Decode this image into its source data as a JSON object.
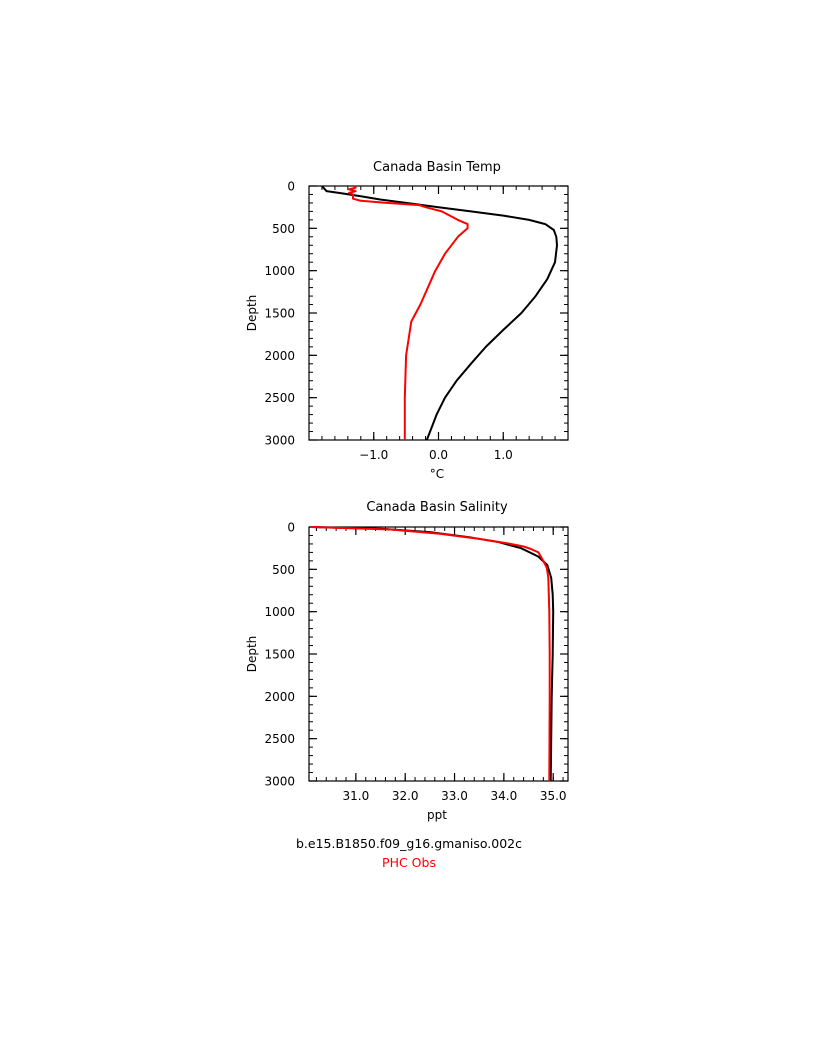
{
  "chart_data": [
    {
      "type": "line",
      "title": "Canada Basin Temp",
      "xlabel": "°C",
      "ylabel": "Depth",
      "xlim": [
        -2.0,
        2.0
      ],
      "ylim": [
        3000,
        0
      ],
      "y_inverted": true,
      "x_ticks": [
        -1.0,
        0.0,
        1.0
      ],
      "x_tick_labels": [
        "−1.0",
        "0.0",
        "1.0"
      ],
      "y_ticks": [
        0,
        500,
        1000,
        1500,
        2000,
        2500,
        3000
      ],
      "y_tick_labels": [
        "0",
        "500",
        "1000",
        "1500",
        "2000",
        "2500",
        "3000"
      ],
      "series": [
        {
          "name": "b.e15.B1850.f09_g16.gmaniso.002c",
          "color": "#000000",
          "points": [
            [
              -1.8,
              0
            ],
            [
              -1.73,
              60
            ],
            [
              -1.5,
              85
            ],
            [
              -1.2,
              120
            ],
            [
              -0.9,
              160
            ],
            [
              -0.5,
              200
            ],
            [
              0.0,
              250
            ],
            [
              0.5,
              300
            ],
            [
              1.0,
              350
            ],
            [
              1.4,
              400
            ],
            [
              1.65,
              450
            ],
            [
              1.78,
              520
            ],
            [
              1.82,
              600
            ],
            [
              1.83,
              700
            ],
            [
              1.8,
              900
            ],
            [
              1.68,
              1100
            ],
            [
              1.5,
              1300
            ],
            [
              1.28,
              1500
            ],
            [
              1.0,
              1700
            ],
            [
              0.73,
              1900
            ],
            [
              0.5,
              2100
            ],
            [
              0.28,
              2300
            ],
            [
              0.1,
              2500
            ],
            [
              -0.03,
              2700
            ],
            [
              -0.13,
              2900
            ],
            [
              -0.18,
              3000
            ]
          ]
        },
        {
          "name": "PHC Obs",
          "color": "#ff0000",
          "points": [
            [
              -1.3,
              0
            ],
            [
              -1.28,
              20
            ],
            [
              -1.38,
              40
            ],
            [
              -1.28,
              60
            ],
            [
              -1.38,
              80
            ],
            [
              -1.32,
              100
            ],
            [
              -1.32,
              150
            ],
            [
              -1.2,
              175
            ],
            [
              -0.8,
              200
            ],
            [
              -0.3,
              225
            ],
            [
              -0.2,
              250
            ],
            [
              0.05,
              300
            ],
            [
              0.3,
              400
            ],
            [
              0.45,
              450
            ],
            [
              0.45,
              500
            ],
            [
              0.3,
              600
            ],
            [
              0.1,
              800
            ],
            [
              -0.05,
              1000
            ],
            [
              -0.28,
              1400
            ],
            [
              -0.42,
              1600
            ],
            [
              -0.5,
              2000
            ],
            [
              -0.52,
              2500
            ],
            [
              -0.52,
              3000
            ]
          ]
        }
      ]
    },
    {
      "type": "line",
      "title": "Canada Basin Salinity",
      "xlabel": "ppt",
      "ylabel": "Depth",
      "xlim": [
        30.05,
        35.3
      ],
      "ylim": [
        3000,
        0
      ],
      "y_inverted": true,
      "x_ticks": [
        31.0,
        32.0,
        33.0,
        34.0,
        35.0
      ],
      "x_tick_labels": [
        "31.0",
        "32.0",
        "33.0",
        "34.0",
        "35.0"
      ],
      "y_ticks": [
        0,
        500,
        1000,
        1500,
        2000,
        2500,
        3000
      ],
      "y_tick_labels": [
        "0",
        "500",
        "1000",
        "1500",
        "2000",
        "2500",
        "3000"
      ],
      "series": [
        {
          "name": "b.e15.B1850.f09_g16.gmaniso.002c",
          "color": "#000000",
          "points": [
            [
              30.1,
              0
            ],
            [
              31.5,
              20
            ],
            [
              32.5,
              60
            ],
            [
              33.3,
              120
            ],
            [
              33.9,
              180
            ],
            [
              34.35,
              250
            ],
            [
              34.7,
              350
            ],
            [
              34.88,
              450
            ],
            [
              34.96,
              600
            ],
            [
              34.99,
              800
            ],
            [
              35.0,
              1000
            ],
            [
              34.99,
              1500
            ],
            [
              34.97,
              2000
            ],
            [
              34.96,
              2500
            ],
            [
              34.95,
              3000
            ]
          ]
        },
        {
          "name": "PHC Obs",
          "color": "#ff0000",
          "points": [
            [
              30.1,
              0
            ],
            [
              31.7,
              30
            ],
            [
              32.7,
              80
            ],
            [
              33.5,
              140
            ],
            [
              34.05,
              190
            ],
            [
              34.4,
              230
            ],
            [
              34.55,
              260
            ],
            [
              34.7,
              300
            ],
            [
              34.8,
              400
            ],
            [
              34.87,
              480
            ],
            [
              34.9,
              600
            ],
            [
              34.92,
              1000
            ],
            [
              34.93,
              1500
            ],
            [
              34.93,
              2000
            ],
            [
              34.92,
              3000
            ]
          ]
        }
      ]
    }
  ],
  "legend": {
    "model_label": "b.e15.B1850.f09_g16.gmaniso.002c",
    "model_color": "#000000",
    "obs_label": "PHC Obs",
    "obs_color": "#ff0000"
  }
}
